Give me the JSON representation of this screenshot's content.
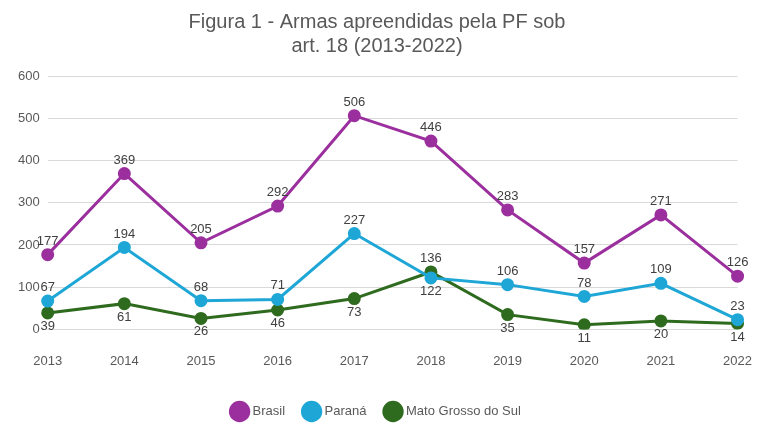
{
  "chart_data": {
    "type": "line",
    "title": [
      "Figura 1 - Armas apreendidas pela PF sob",
      "art. 18 (2013-2022)"
    ],
    "categories": [
      "2013",
      "2014",
      "2015",
      "2016",
      "2017",
      "2018",
      "2019",
      "2020",
      "2021",
      "2022"
    ],
    "series": [
      {
        "name": "Brasil",
        "color": "#9b2f9e",
        "values": [
          177,
          369,
          205,
          292,
          506,
          446,
          283,
          157,
          271,
          126
        ]
      },
      {
        "name": "Paraná",
        "color": "#1ea7d6",
        "values": [
          67,
          194,
          68,
          71,
          227,
          122,
          106,
          78,
          109,
          23
        ]
      },
      {
        "name": "Mato Grosso do Sul",
        "color": "#2f6b1f",
        "values": [
          39,
          61,
          26,
          46,
          73,
          136,
          35,
          11,
          20,
          14
        ]
      }
    ],
    "ylim": [
      0,
      600
    ],
    "yticks": [
      0,
      100,
      200,
      300,
      400,
      500,
      600
    ],
    "grid": true,
    "legend": "bottom",
    "marker": "circle",
    "data_labels": true
  }
}
